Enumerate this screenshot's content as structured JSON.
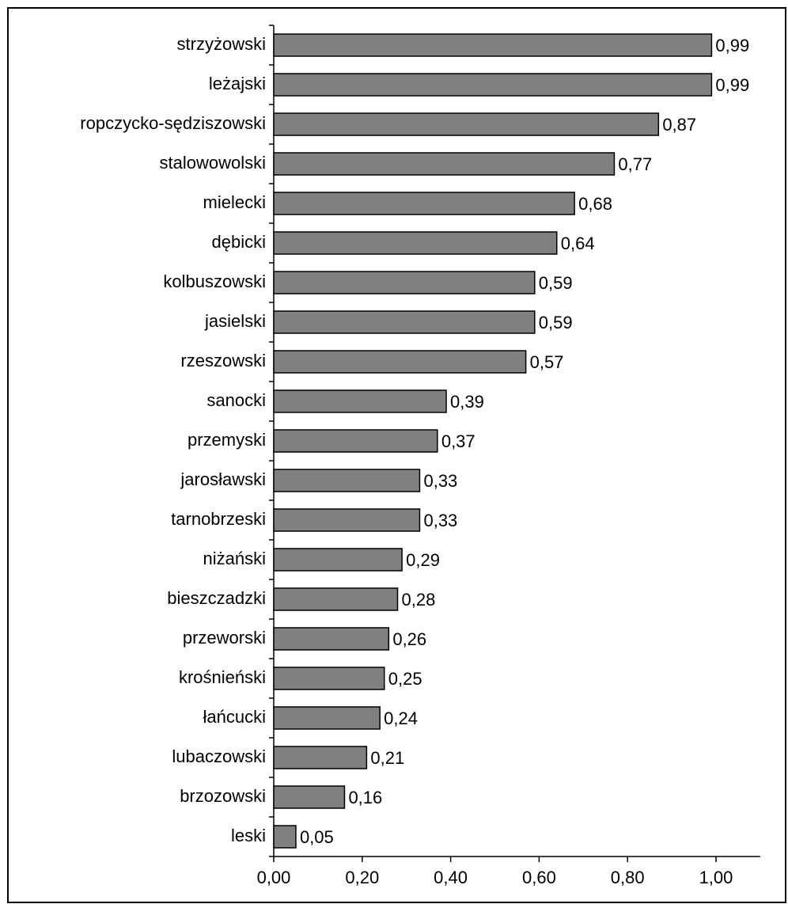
{
  "chart_data": {
    "type": "bar",
    "orientation": "horizontal",
    "categories": [
      "strzyżowski",
      "leżajski",
      "ropczycko-sędziszowski",
      "stalowowolski",
      "mielecki",
      "dębicki",
      "kolbuszowski",
      "jasielski",
      "rzeszowski",
      "sanocki",
      "przemyski",
      "jarosławski",
      "tarnobrzeski",
      "niżański",
      "bieszczadzki",
      "przeworski",
      "krośnieński",
      "łańcucki",
      "lubaczowski",
      "brzozowski",
      "leski"
    ],
    "values": [
      0.99,
      0.99,
      0.87,
      0.77,
      0.68,
      0.64,
      0.59,
      0.59,
      0.57,
      0.39,
      0.37,
      0.33,
      0.33,
      0.29,
      0.28,
      0.26,
      0.25,
      0.24,
      0.21,
      0.16,
      0.05
    ],
    "value_labels": [
      "0,99",
      "0,99",
      "0,87",
      "0,77",
      "0,68",
      "0,64",
      "0,59",
      "0,59",
      "0,57",
      "0,39",
      "0,37",
      "0,33",
      "0,33",
      "0,29",
      "0,28",
      "0,26",
      "0,25",
      "0,24",
      "0,21",
      "0,16",
      "0,05"
    ],
    "color": "#808080",
    "xlim": [
      0,
      1.1
    ],
    "xticks": [
      {
        "value": 0,
        "label": "0,00"
      },
      {
        "value": 0.2,
        "label": "0,20"
      },
      {
        "value": 0.4,
        "label": "0,40"
      },
      {
        "value": 0.6,
        "label": "0,60"
      },
      {
        "value": 0.8,
        "label": "0,80"
      },
      {
        "value": 1,
        "label": "1,00"
      }
    ],
    "grid": false
  }
}
